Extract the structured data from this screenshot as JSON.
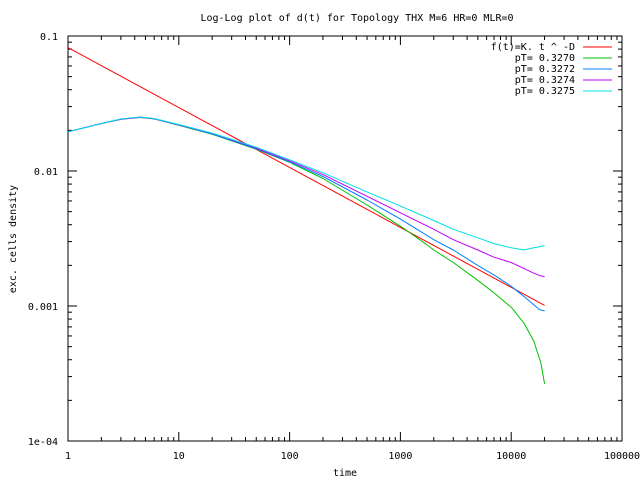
{
  "chart_data": {
    "type": "line",
    "title": "Log-Log plot of d(t) for Topology THX M=6 HR=0 MLR=0",
    "xlabel": "time",
    "ylabel": "exc. cells density",
    "xscale": "log",
    "yscale": "log",
    "xlim": [
      1,
      100000
    ],
    "ylim": [
      0.0001,
      0.1
    ],
    "grid": false,
    "legend_position": "top-right",
    "x_ticks": [
      {
        "value": 1,
        "label": "1"
      },
      {
        "value": 10,
        "label": "10"
      },
      {
        "value": 100,
        "label": "100"
      },
      {
        "value": 1000,
        "label": "1000"
      },
      {
        "value": 10000,
        "label": "10000"
      },
      {
        "value": 100000,
        "label": "100000"
      }
    ],
    "y_ticks": [
      {
        "value": 0.0001,
        "label": "1e-04"
      },
      {
        "value": 0.001,
        "label": "0.001"
      },
      {
        "value": 0.01,
        "label": "0.01"
      },
      {
        "value": 0.1,
        "label": "0.1"
      }
    ],
    "series": [
      {
        "name": "f(t)=K. t ^ -D",
        "color": "#ff0000",
        "points": [
          [
            1,
            0.082
          ],
          [
            20000,
            0.00101
          ]
        ]
      },
      {
        "name": "pT= 0.3270",
        "color": "#00c000",
        "points": [
          [
            1,
            0.0195
          ],
          [
            2,
            0.0225
          ],
          [
            3,
            0.0242
          ],
          [
            4.5,
            0.0249
          ],
          [
            6,
            0.0243
          ],
          [
            10,
            0.0218
          ],
          [
            20,
            0.0187
          ],
          [
            50,
            0.0145
          ],
          [
            100,
            0.0116
          ],
          [
            200,
            0.0088
          ],
          [
            500,
            0.0056
          ],
          [
            1000,
            0.0039
          ],
          [
            1500,
            0.0031
          ],
          [
            2000,
            0.0026
          ],
          [
            3000,
            0.0021
          ],
          [
            5000,
            0.00155
          ],
          [
            7000,
            0.00125
          ],
          [
            10000,
            0.00098
          ],
          [
            13000,
            0.00075
          ],
          [
            16000,
            0.00055
          ],
          [
            18500,
            0.00038
          ],
          [
            20000,
            0.000265
          ]
        ]
      },
      {
        "name": "pT= 0.3272",
        "color": "#0080ff",
        "points": [
          [
            1,
            0.0195
          ],
          [
            2,
            0.0225
          ],
          [
            3,
            0.0242
          ],
          [
            4.5,
            0.025
          ],
          [
            6,
            0.0243
          ],
          [
            10,
            0.0219
          ],
          [
            20,
            0.0188
          ],
          [
            50,
            0.0146
          ],
          [
            100,
            0.0117
          ],
          [
            200,
            0.0091
          ],
          [
            500,
            0.0061
          ],
          [
            1000,
            0.0044
          ],
          [
            2000,
            0.0031
          ],
          [
            3000,
            0.0026
          ],
          [
            5000,
            0.002
          ],
          [
            7000,
            0.0017
          ],
          [
            10000,
            0.0014
          ],
          [
            13000,
            0.00118
          ],
          [
            16000,
            0.00102
          ],
          [
            18000,
            0.00094
          ],
          [
            20000,
            0.00092
          ]
        ]
      },
      {
        "name": "pT= 0.3274",
        "color": "#c000ff",
        "points": [
          [
            1,
            0.0195
          ],
          [
            2,
            0.0225
          ],
          [
            3,
            0.0242
          ],
          [
            4.5,
            0.025
          ],
          [
            6,
            0.0244
          ],
          [
            10,
            0.022
          ],
          [
            20,
            0.019
          ],
          [
            50,
            0.0148
          ],
          [
            100,
            0.0119
          ],
          [
            200,
            0.0094
          ],
          [
            500,
            0.0065
          ],
          [
            1000,
            0.0049
          ],
          [
            2000,
            0.0037
          ],
          [
            3000,
            0.0031
          ],
          [
            5000,
            0.0026
          ],
          [
            7000,
            0.0023
          ],
          [
            10000,
            0.0021
          ],
          [
            13000,
            0.0019
          ],
          [
            16000,
            0.00175
          ],
          [
            18000,
            0.00168
          ],
          [
            20000,
            0.00165
          ]
        ]
      },
      {
        "name": "pT= 0.3275",
        "color": "#00e0e0",
        "points": [
          [
            1,
            0.0195
          ],
          [
            2,
            0.0225
          ],
          [
            3,
            0.0243
          ],
          [
            4.5,
            0.0251
          ],
          [
            6,
            0.0245
          ],
          [
            10,
            0.0221
          ],
          [
            20,
            0.0191
          ],
          [
            50,
            0.015
          ],
          [
            100,
            0.0121
          ],
          [
            200,
            0.0097
          ],
          [
            500,
            0.007
          ],
          [
            1000,
            0.0055
          ],
          [
            2000,
            0.0043
          ],
          [
            3000,
            0.0037
          ],
          [
            5000,
            0.0032
          ],
          [
            7000,
            0.0029
          ],
          [
            10000,
            0.0027
          ],
          [
            13000,
            0.0026
          ],
          [
            16000,
            0.0027
          ],
          [
            18000,
            0.00275
          ],
          [
            20000,
            0.0028
          ]
        ]
      }
    ]
  }
}
